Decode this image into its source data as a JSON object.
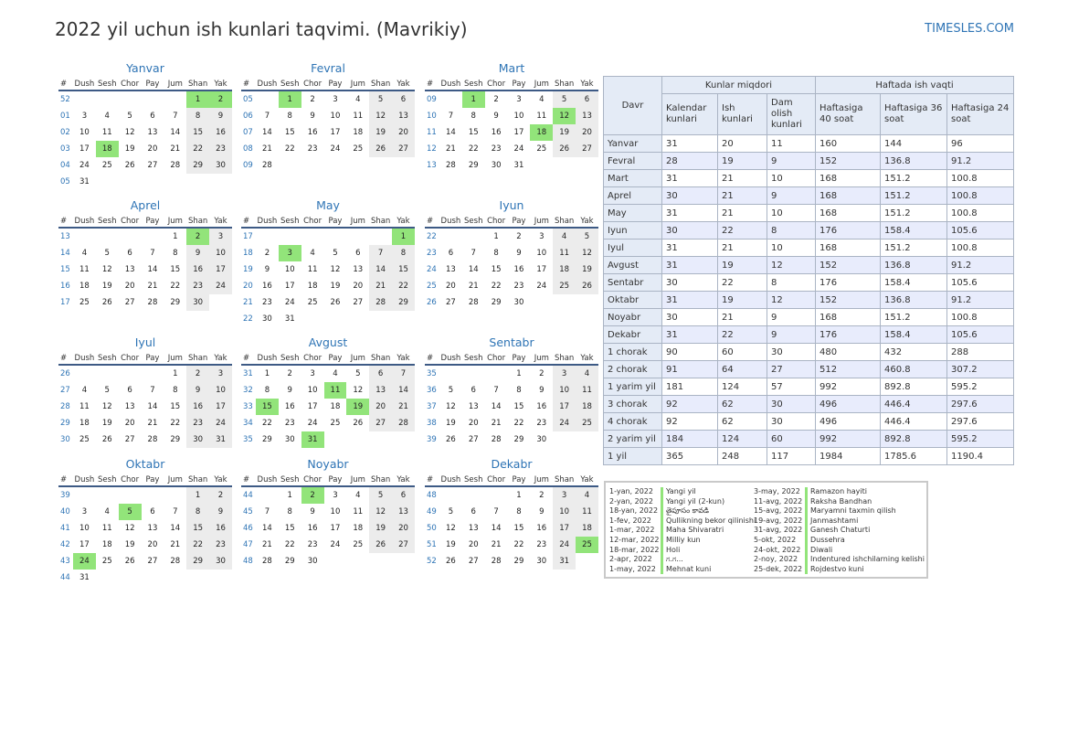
{
  "title": "2022 yil uchun ish kunlari taqvimi. (Mavrikiy)",
  "site": "TIMESLES.COM",
  "weekday_header": [
    "#",
    "Dush",
    "Sesh",
    "Chor",
    "Pay",
    "Jum",
    "Shan",
    "Yak"
  ],
  "months": [
    {
      "name": "Yanvar",
      "rows": [
        {
          "wk": "52",
          "days": [
            "",
            "",
            "",
            "",
            "",
            "1",
            "2"
          ],
          "hol": [
            5,
            6
          ]
        },
        {
          "wk": "01",
          "days": [
            "3",
            "4",
            "5",
            "6",
            "7",
            "8",
            "9"
          ],
          "hol": []
        },
        {
          "wk": "02",
          "days": [
            "10",
            "11",
            "12",
            "13",
            "14",
            "15",
            "16"
          ],
          "hol": []
        },
        {
          "wk": "03",
          "days": [
            "17",
            "18",
            "19",
            "20",
            "21",
            "22",
            "23"
          ],
          "hol": [
            1
          ]
        },
        {
          "wk": "04",
          "days": [
            "24",
            "25",
            "26",
            "27",
            "28",
            "29",
            "30"
          ],
          "hol": []
        },
        {
          "wk": "05",
          "days": [
            "31",
            "",
            "",
            "",
            "",
            "",
            ""
          ],
          "hol": []
        }
      ]
    },
    {
      "name": "Fevral",
      "rows": [
        {
          "wk": "05",
          "days": [
            "",
            "1",
            "2",
            "3",
            "4",
            "5",
            "6"
          ],
          "hol": [
            1
          ]
        },
        {
          "wk": "06",
          "days": [
            "7",
            "8",
            "9",
            "10",
            "11",
            "12",
            "13"
          ],
          "hol": []
        },
        {
          "wk": "07",
          "days": [
            "14",
            "15",
            "16",
            "17",
            "18",
            "19",
            "20"
          ],
          "hol": []
        },
        {
          "wk": "08",
          "days": [
            "21",
            "22",
            "23",
            "24",
            "25",
            "26",
            "27"
          ],
          "hol": []
        },
        {
          "wk": "09",
          "days": [
            "28",
            "",
            "",
            "",
            "",
            "",
            ""
          ],
          "hol": []
        }
      ]
    },
    {
      "name": "Mart",
      "rows": [
        {
          "wk": "09",
          "days": [
            "",
            "1",
            "2",
            "3",
            "4",
            "5",
            "6"
          ],
          "hol": [
            1
          ]
        },
        {
          "wk": "10",
          "days": [
            "7",
            "8",
            "9",
            "10",
            "11",
            "12",
            "13"
          ],
          "hol": [
            5
          ]
        },
        {
          "wk": "11",
          "days": [
            "14",
            "15",
            "16",
            "17",
            "18",
            "19",
            "20"
          ],
          "hol": [
            4
          ]
        },
        {
          "wk": "12",
          "days": [
            "21",
            "22",
            "23",
            "24",
            "25",
            "26",
            "27"
          ],
          "hol": []
        },
        {
          "wk": "13",
          "days": [
            "28",
            "29",
            "30",
            "31",
            "",
            "",
            ""
          ],
          "hol": []
        }
      ]
    },
    {
      "name": "Aprel",
      "rows": [
        {
          "wk": "13",
          "days": [
            "",
            "",
            "",
            "",
            "1",
            "2",
            "3"
          ],
          "hol": [
            5
          ]
        },
        {
          "wk": "14",
          "days": [
            "4",
            "5",
            "6",
            "7",
            "8",
            "9",
            "10"
          ],
          "hol": []
        },
        {
          "wk": "15",
          "days": [
            "11",
            "12",
            "13",
            "14",
            "15",
            "16",
            "17"
          ],
          "hol": []
        },
        {
          "wk": "16",
          "days": [
            "18",
            "19",
            "20",
            "21",
            "22",
            "23",
            "24"
          ],
          "hol": []
        },
        {
          "wk": "17",
          "days": [
            "25",
            "26",
            "27",
            "28",
            "29",
            "30",
            ""
          ],
          "hol": []
        }
      ]
    },
    {
      "name": "May",
      "rows": [
        {
          "wk": "17",
          "days": [
            "",
            "",
            "",
            "",
            "",
            "",
            "1"
          ],
          "hol": [
            6
          ]
        },
        {
          "wk": "18",
          "days": [
            "2",
            "3",
            "4",
            "5",
            "6",
            "7",
            "8"
          ],
          "hol": [
            1
          ]
        },
        {
          "wk": "19",
          "days": [
            "9",
            "10",
            "11",
            "12",
            "13",
            "14",
            "15"
          ],
          "hol": []
        },
        {
          "wk": "20",
          "days": [
            "16",
            "17",
            "18",
            "19",
            "20",
            "21",
            "22"
          ],
          "hol": []
        },
        {
          "wk": "21",
          "days": [
            "23",
            "24",
            "25",
            "26",
            "27",
            "28",
            "29"
          ],
          "hol": []
        },
        {
          "wk": "22",
          "days": [
            "30",
            "31",
            "",
            "",
            "",
            "",
            ""
          ],
          "hol": []
        }
      ]
    },
    {
      "name": "Iyun",
      "rows": [
        {
          "wk": "22",
          "days": [
            "",
            "",
            "1",
            "2",
            "3",
            "4",
            "5"
          ],
          "hol": []
        },
        {
          "wk": "23",
          "days": [
            "6",
            "7",
            "8",
            "9",
            "10",
            "11",
            "12"
          ],
          "hol": []
        },
        {
          "wk": "24",
          "days": [
            "13",
            "14",
            "15",
            "16",
            "17",
            "18",
            "19"
          ],
          "hol": []
        },
        {
          "wk": "25",
          "days": [
            "20",
            "21",
            "22",
            "23",
            "24",
            "25",
            "26"
          ],
          "hol": []
        },
        {
          "wk": "26",
          "days": [
            "27",
            "28",
            "29",
            "30",
            "",
            "",
            ""
          ],
          "hol": []
        }
      ]
    },
    {
      "name": "Iyul",
      "rows": [
        {
          "wk": "26",
          "days": [
            "",
            "",
            "",
            "",
            "1",
            "2",
            "3"
          ],
          "hol": []
        },
        {
          "wk": "27",
          "days": [
            "4",
            "5",
            "6",
            "7",
            "8",
            "9",
            "10"
          ],
          "hol": []
        },
        {
          "wk": "28",
          "days": [
            "11",
            "12",
            "13",
            "14",
            "15",
            "16",
            "17"
          ],
          "hol": []
        },
        {
          "wk": "29",
          "days": [
            "18",
            "19",
            "20",
            "21",
            "22",
            "23",
            "24"
          ],
          "hol": []
        },
        {
          "wk": "30",
          "days": [
            "25",
            "26",
            "27",
            "28",
            "29",
            "30",
            "31"
          ],
          "hol": []
        }
      ]
    },
    {
      "name": "Avgust",
      "rows": [
        {
          "wk": "31",
          "days": [
            "1",
            "2",
            "3",
            "4",
            "5",
            "6",
            "7"
          ],
          "hol": []
        },
        {
          "wk": "32",
          "days": [
            "8",
            "9",
            "10",
            "11",
            "12",
            "13",
            "14"
          ],
          "hol": [
            3
          ]
        },
        {
          "wk": "33",
          "days": [
            "15",
            "16",
            "17",
            "18",
            "19",
            "20",
            "21"
          ],
          "hol": [
            0,
            4
          ]
        },
        {
          "wk": "34",
          "days": [
            "22",
            "23",
            "24",
            "25",
            "26",
            "27",
            "28"
          ],
          "hol": []
        },
        {
          "wk": "35",
          "days": [
            "29",
            "30",
            "31",
            "",
            "",
            "",
            ""
          ],
          "hol": [
            2
          ]
        }
      ]
    },
    {
      "name": "Sentabr",
      "rows": [
        {
          "wk": "35",
          "days": [
            "",
            "",
            "",
            "1",
            "2",
            "3",
            "4"
          ],
          "hol": []
        },
        {
          "wk": "36",
          "days": [
            "5",
            "6",
            "7",
            "8",
            "9",
            "10",
            "11"
          ],
          "hol": []
        },
        {
          "wk": "37",
          "days": [
            "12",
            "13",
            "14",
            "15",
            "16",
            "17",
            "18"
          ],
          "hol": []
        },
        {
          "wk": "38",
          "days": [
            "19",
            "20",
            "21",
            "22",
            "23",
            "24",
            "25"
          ],
          "hol": []
        },
        {
          "wk": "39",
          "days": [
            "26",
            "27",
            "28",
            "29",
            "30",
            "",
            ""
          ],
          "hol": []
        }
      ]
    },
    {
      "name": "Oktabr",
      "rows": [
        {
          "wk": "39",
          "days": [
            "",
            "",
            "",
            "",
            "",
            "1",
            "2"
          ],
          "hol": []
        },
        {
          "wk": "40",
          "days": [
            "3",
            "4",
            "5",
            "6",
            "7",
            "8",
            "9"
          ],
          "hol": [
            2
          ]
        },
        {
          "wk": "41",
          "days": [
            "10",
            "11",
            "12",
            "13",
            "14",
            "15",
            "16"
          ],
          "hol": []
        },
        {
          "wk": "42",
          "days": [
            "17",
            "18",
            "19",
            "20",
            "21",
            "22",
            "23"
          ],
          "hol": []
        },
        {
          "wk": "43",
          "days": [
            "24",
            "25",
            "26",
            "27",
            "28",
            "29",
            "30"
          ],
          "hol": [
            0
          ]
        },
        {
          "wk": "44",
          "days": [
            "31",
            "",
            "",
            "",
            "",
            "",
            ""
          ],
          "hol": []
        }
      ]
    },
    {
      "name": "Noyabr",
      "rows": [
        {
          "wk": "44",
          "days": [
            "",
            "1",
            "2",
            "3",
            "4",
            "5",
            "6"
          ],
          "hol": [
            2
          ]
        },
        {
          "wk": "45",
          "days": [
            "7",
            "8",
            "9",
            "10",
            "11",
            "12",
            "13"
          ],
          "hol": []
        },
        {
          "wk": "46",
          "days": [
            "14",
            "15",
            "16",
            "17",
            "18",
            "19",
            "20"
          ],
          "hol": []
        },
        {
          "wk": "47",
          "days": [
            "21",
            "22",
            "23",
            "24",
            "25",
            "26",
            "27"
          ],
          "hol": []
        },
        {
          "wk": "48",
          "days": [
            "28",
            "29",
            "30",
            "",
            "",
            "",
            ""
          ],
          "hol": []
        }
      ]
    },
    {
      "name": "Dekabr",
      "rows": [
        {
          "wk": "48",
          "days": [
            "",
            "",
            "",
            "1",
            "2",
            "3",
            "4"
          ],
          "hol": []
        },
        {
          "wk": "49",
          "days": [
            "5",
            "6",
            "7",
            "8",
            "9",
            "10",
            "11"
          ],
          "hol": []
        },
        {
          "wk": "50",
          "days": [
            "12",
            "13",
            "14",
            "15",
            "16",
            "17",
            "18"
          ],
          "hol": []
        },
        {
          "wk": "51",
          "days": [
            "19",
            "20",
            "21",
            "22",
            "23",
            "24",
            "25"
          ],
          "hol": [
            6
          ]
        },
        {
          "wk": "52",
          "days": [
            "26",
            "27",
            "28",
            "29",
            "30",
            "31",
            ""
          ],
          "hol": []
        }
      ]
    }
  ],
  "stats_table": {
    "group_headers": {
      "days": "Kunlar miqdori",
      "hours": "Haftada ish vaqti"
    },
    "period_header": "Davr",
    "columns": [
      "Kalendar kunlari",
      "Ish kunlari",
      "Dam olish kunlari",
      "Haftasiga 40 soat",
      "Haftasiga 36 soat",
      "Haftasiga 24 soat"
    ],
    "rows": [
      [
        "Yanvar",
        "31",
        "20",
        "11",
        "160",
        "144",
        "96"
      ],
      [
        "Fevral",
        "28",
        "19",
        "9",
        "152",
        "136.8",
        "91.2"
      ],
      [
        "Mart",
        "31",
        "21",
        "10",
        "168",
        "151.2",
        "100.8"
      ],
      [
        "Aprel",
        "30",
        "21",
        "9",
        "168",
        "151.2",
        "100.8"
      ],
      [
        "May",
        "31",
        "21",
        "10",
        "168",
        "151.2",
        "100.8"
      ],
      [
        "Iyun",
        "30",
        "22",
        "8",
        "176",
        "158.4",
        "105.6"
      ],
      [
        "Iyul",
        "31",
        "21",
        "10",
        "168",
        "151.2",
        "100.8"
      ],
      [
        "Avgust",
        "31",
        "19",
        "12",
        "152",
        "136.8",
        "91.2"
      ],
      [
        "Sentabr",
        "30",
        "22",
        "8",
        "176",
        "158.4",
        "105.6"
      ],
      [
        "Oktabr",
        "31",
        "19",
        "12",
        "152",
        "136.8",
        "91.2"
      ],
      [
        "Noyabr",
        "30",
        "21",
        "9",
        "168",
        "151.2",
        "100.8"
      ],
      [
        "Dekabr",
        "31",
        "22",
        "9",
        "176",
        "158.4",
        "105.6"
      ],
      [
        "1 chorak",
        "90",
        "60",
        "30",
        "480",
        "432",
        "288"
      ],
      [
        "2 chorak",
        "91",
        "64",
        "27",
        "512",
        "460.8",
        "307.2"
      ],
      [
        "1 yarim yil",
        "181",
        "124",
        "57",
        "992",
        "892.8",
        "595.2"
      ],
      [
        "3 chorak",
        "92",
        "62",
        "30",
        "496",
        "446.4",
        "297.6"
      ],
      [
        "4 chorak",
        "92",
        "62",
        "30",
        "496",
        "446.4",
        "297.6"
      ],
      [
        "2 yarim yil",
        "184",
        "124",
        "60",
        "992",
        "892.8",
        "595.2"
      ],
      [
        "1 yil",
        "365",
        "248",
        "117",
        "1984",
        "1785.6",
        "1190.4"
      ]
    ]
  },
  "holidays": [
    [
      {
        "date": "1-yan, 2022",
        "name": "Yangi yil"
      },
      {
        "date": "2-yan, 2022",
        "name": "Yangi yil (2-kun)"
      },
      {
        "date": "18-yan, 2022",
        "name": "తైపూసం కావడి"
      },
      {
        "date": "1-fev, 2022",
        "name": "Qullikning bekor qilinishi"
      },
      {
        "date": "1-mar, 2022",
        "name": "Maha Shivaratri"
      },
      {
        "date": "12-mar, 2022",
        "name": "Milliy kun"
      },
      {
        "date": "18-mar, 2022",
        "name": "Holi"
      },
      {
        "date": "2-apr, 2022",
        "name": "ಗ.ಗ..."
      },
      {
        "date": "1-may, 2022",
        "name": "Mehnat kuni"
      }
    ],
    [
      {
        "date": "3-may, 2022",
        "name": "Ramazon hayiti"
      },
      {
        "date": "11-avg, 2022",
        "name": "Raksha Bandhan"
      },
      {
        "date": "15-avg, 2022",
        "name": "Maryamni taxmin qilish"
      },
      {
        "date": "19-avg, 2022",
        "name": "Janmashtami"
      },
      {
        "date": "31-avg, 2022",
        "name": "Ganesh Chaturti"
      },
      {
        "date": "5-okt, 2022",
        "name": "Dussehra"
      },
      {
        "date": "24-okt, 2022",
        "name": "Diwali"
      },
      {
        "date": "2-noy, 2022",
        "name": "Indentured ishchilarning kelishi"
      },
      {
        "date": "25-dek, 2022",
        "name": "Rojdestvo kuni"
      }
    ]
  ],
  "colors": {
    "accent": "#2e74b5",
    "holiday": "#92e47a",
    "weekend": "#ececec",
    "table_header": "#e4ebf6"
  }
}
